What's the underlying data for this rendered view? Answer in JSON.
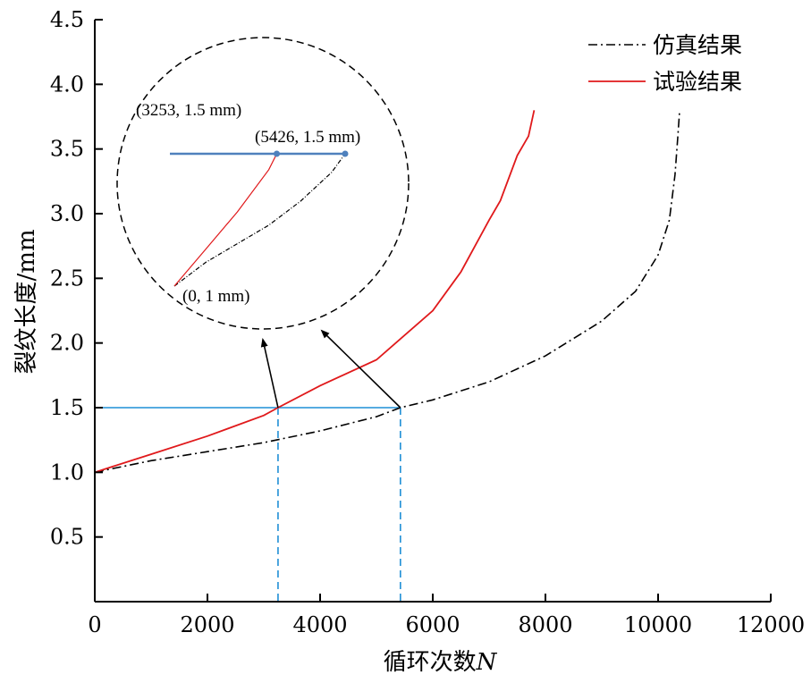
{
  "chart_data": {
    "type": "line",
    "title": "",
    "xlabel": "循环次数",
    "xlabel_var": "N",
    "ylabel": "裂纹长度/mm",
    "xlim": [
      0,
      12000
    ],
    "ylim": [
      0,
      4.5
    ],
    "xticks": [
      0,
      2000,
      4000,
      6000,
      8000,
      10000,
      12000
    ],
    "yticks": [
      0.5,
      1.0,
      1.5,
      2.0,
      2.5,
      3.0,
      3.5,
      4.0,
      4.5
    ],
    "xtick_labels": [
      "0",
      "2000",
      "4000",
      "6000",
      "8000",
      "10000",
      "12000"
    ],
    "ytick_labels": [
      "0.5",
      "1.0",
      "1.5",
      "2.0",
      "2.5",
      "3.0",
      "3.5",
      "4.0",
      "4.5"
    ],
    "grid": false,
    "legend_position": "top-right",
    "series": [
      {
        "name": "仿真结果",
        "style": "dash-dot",
        "color": "#000000",
        "x": [
          0,
          1000,
          2000,
          3000,
          4000,
          5000,
          5426,
          6000,
          7000,
          8000,
          9000,
          9600,
          10000,
          10200,
          10300,
          10350,
          10380
        ],
        "y": [
          1.0,
          1.09,
          1.16,
          1.23,
          1.32,
          1.43,
          1.5,
          1.56,
          1.7,
          1.9,
          2.17,
          2.4,
          2.68,
          2.95,
          3.3,
          3.6,
          3.78
        ]
      },
      {
        "name": "试验结果",
        "style": "solid",
        "color": "#e0191b",
        "x": [
          0,
          1000,
          2000,
          3000,
          3253,
          4000,
          5000,
          6000,
          6500,
          7000,
          7200,
          7500,
          7700,
          7800
        ],
        "y": [
          1.0,
          1.14,
          1.28,
          1.44,
          1.5,
          1.67,
          1.87,
          2.25,
          2.55,
          2.95,
          3.1,
          3.45,
          3.6,
          3.8
        ]
      }
    ],
    "reference_line": {
      "y": 1.5,
      "x_markers": [
        3253,
        5426
      ],
      "color": "#1f8fd6"
    },
    "inset": {
      "annotations": [
        "(3253, 1.5 mm)",
        "(5426, 1.5 mm)",
        "(0, 1 mm)"
      ]
    }
  }
}
